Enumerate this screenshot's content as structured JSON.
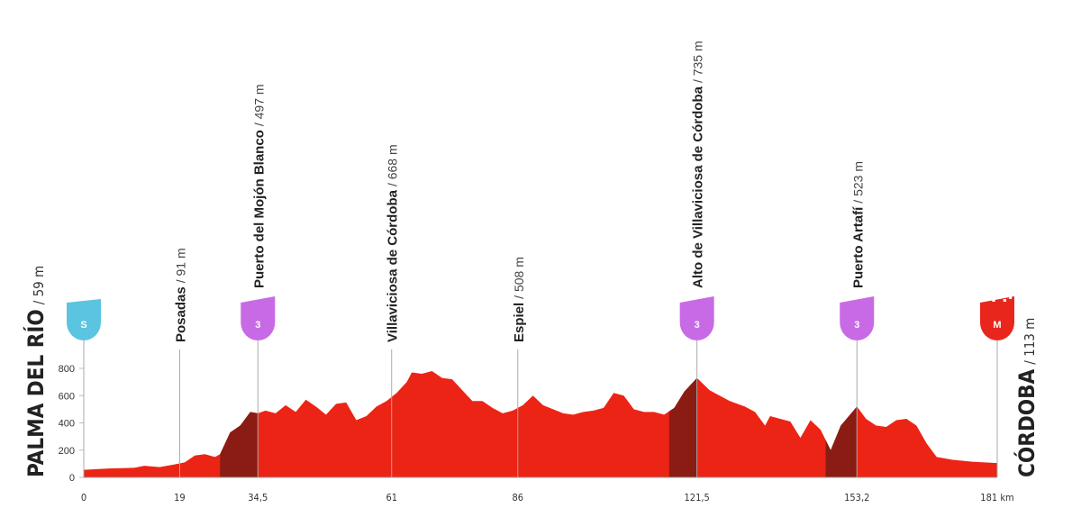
{
  "chart_data": {
    "type": "area",
    "color": "#ec2415",
    "climb_color": "#8a1c14",
    "x": [
      0,
      5,
      10,
      12,
      15,
      18,
      20,
      22,
      24,
      26,
      27,
      29,
      31,
      33,
      34.5,
      36,
      38,
      40,
      42,
      44,
      46,
      48,
      50,
      52,
      54,
      56,
      58,
      60,
      62,
      64,
      65,
      67,
      69,
      71,
      73,
      75,
      77,
      79,
      81,
      83,
      85,
      87,
      89,
      91,
      93,
      95,
      97,
      99,
      101,
      103,
      105,
      107,
      109,
      111,
      113,
      115,
      117,
      119,
      121.5,
      124,
      126,
      128,
      131,
      133,
      135,
      136,
      138,
      140,
      142,
      144,
      146,
      148,
      150,
      153.2,
      155,
      157,
      159,
      161,
      163,
      165,
      167,
      169,
      172,
      176,
      181
    ],
    "values": [
      55,
      65,
      70,
      85,
      75,
      95,
      110,
      160,
      170,
      150,
      170,
      330,
      380,
      480,
      470,
      490,
      470,
      530,
      480,
      570,
      520,
      460,
      540,
      550,
      420,
      450,
      520,
      560,
      620,
      700,
      770,
      760,
      780,
      730,
      720,
      640,
      560,
      560,
      510,
      470,
      490,
      530,
      600,
      530,
      500,
      470,
      460,
      480,
      490,
      510,
      620,
      600,
      500,
      480,
      480,
      460,
      510,
      630,
      730,
      640,
      600,
      560,
      520,
      480,
      380,
      450,
      430,
      410,
      290,
      420,
      350,
      200,
      380,
      520,
      430,
      380,
      370,
      420,
      430,
      380,
      250,
      150,
      130,
      115,
      105
    ],
    "xlim": [
      0,
      181
    ],
    "ylim": [
      0,
      800
    ],
    "xticks": [
      0,
      19,
      {
        "value": 34.5,
        "label": "34,5"
      },
      61,
      86,
      {
        "value": 121.5,
        "label": "121,5"
      },
      {
        "value": 153.2,
        "label": "153,2"
      },
      {
        "value": 181,
        "label": "181 km"
      }
    ],
    "yticks": [
      0,
      200,
      400,
      600,
      800
    ],
    "climbs": [
      {
        "start": 27,
        "end": 34.5
      },
      {
        "start": 116,
        "end": 121.5
      },
      {
        "start": 147,
        "end": 153.2
      }
    ],
    "waypoints": [
      {
        "name": "PALMA DEL RÍO",
        "elevation": "/ 59 m",
        "badge": "S",
        "badge_color": "#5bc4e0"
      },
      {
        "name": "Posadas",
        "elevation": "/ 91 m"
      },
      {
        "name": "Puerto del Mojón Blanco",
        "elevation": "/ 497 m",
        "badge": "3",
        "badge_color": "#c86ae6"
      },
      {
        "name": "Villaviciosa de Córdoba",
        "elevation": "/ 668 m"
      },
      {
        "name": "Espiel",
        "elevation": "/ 508 m"
      },
      {
        "name": "Alto de Villaviciosa de Córdoba",
        "elevation": "/ 735 m",
        "badge": "3",
        "badge_color": "#c86ae6"
      },
      {
        "name": "Puerto Artafí",
        "elevation": "/ 523 m",
        "badge": "3",
        "badge_color": "#c86ae6"
      },
      {
        "name": "CÓRDOBA",
        "elevation": "/ 113 m",
        "badge": "M",
        "badge_color": "#e8261c"
      }
    ]
  }
}
